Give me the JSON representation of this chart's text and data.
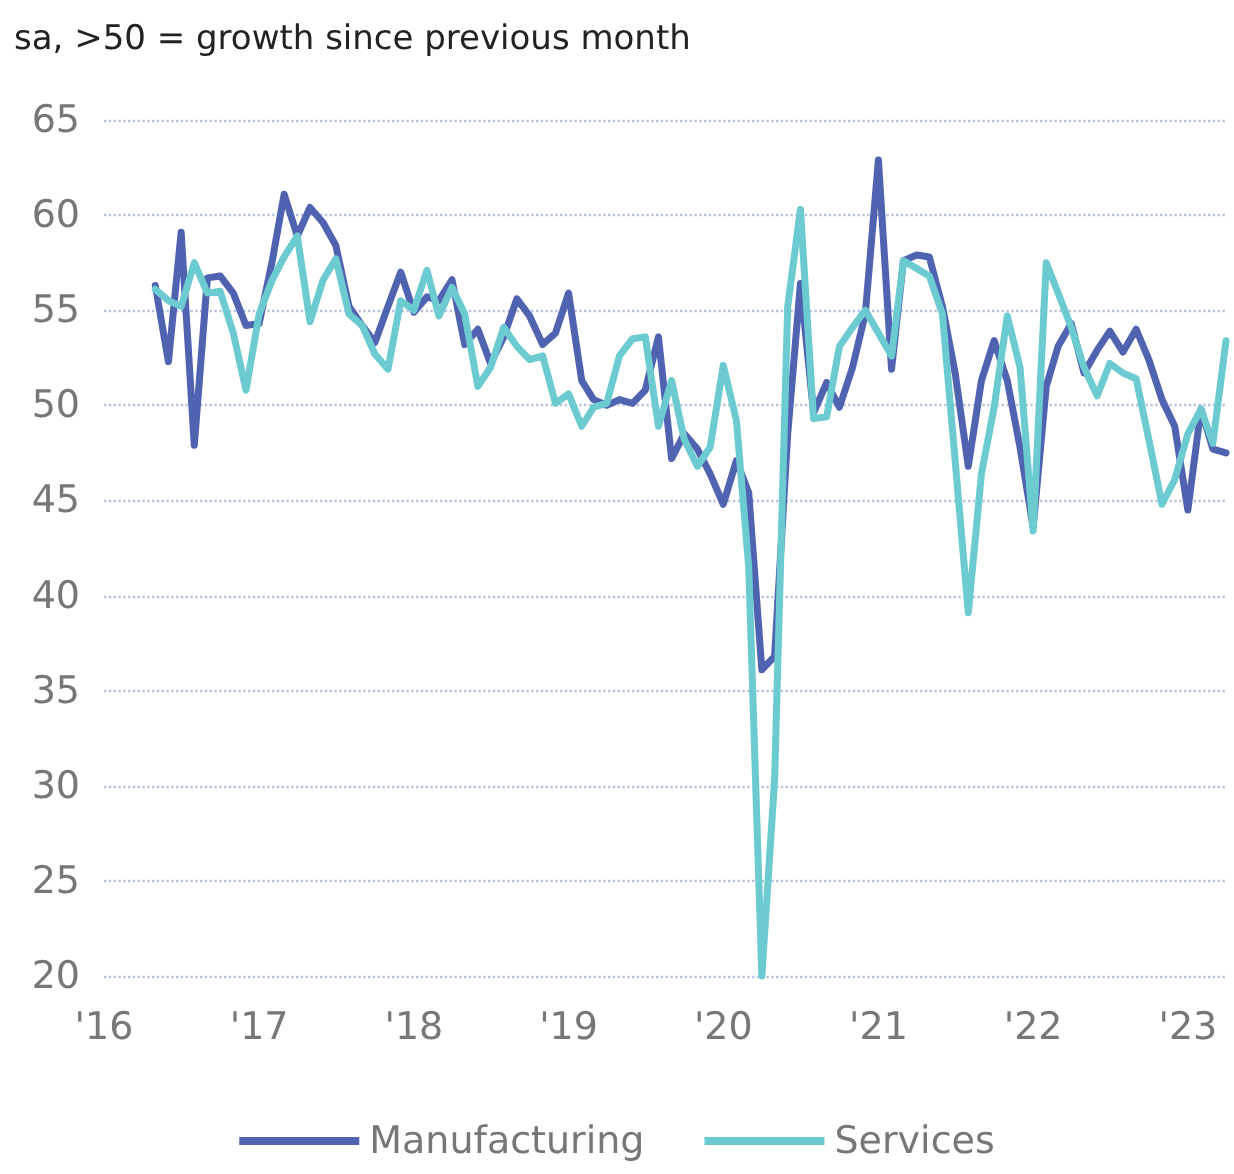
{
  "chart_data": {
    "type": "line",
    "subtitle": "sa, >50 = growth since previous month",
    "x": [
      "2016-05",
      "2016-06",
      "2016-07",
      "2016-08",
      "2016-09",
      "2016-10",
      "2016-11",
      "2016-12",
      "2017-01",
      "2017-02",
      "2017-03",
      "2017-04",
      "2017-05",
      "2017-06",
      "2017-07",
      "2017-08",
      "2017-09",
      "2017-10",
      "2017-11",
      "2017-12",
      "2018-01",
      "2018-02",
      "2018-03",
      "2018-04",
      "2018-05",
      "2018-06",
      "2018-07",
      "2018-08",
      "2018-09",
      "2018-10",
      "2018-11",
      "2018-12",
      "2019-01",
      "2019-02",
      "2019-03",
      "2019-04",
      "2019-05",
      "2019-06",
      "2019-07",
      "2019-08",
      "2019-09",
      "2019-10",
      "2019-11",
      "2019-12",
      "2020-01",
      "2020-02",
      "2020-03",
      "2020-04",
      "2020-05",
      "2020-06",
      "2020-07",
      "2020-08",
      "2020-09",
      "2020-10",
      "2020-11",
      "2020-12",
      "2021-01",
      "2021-02",
      "2021-03",
      "2021-04",
      "2021-05",
      "2021-06",
      "2021-07",
      "2021-08",
      "2021-09",
      "2021-10",
      "2021-11",
      "2021-12",
      "2022-01",
      "2022-02",
      "2022-03",
      "2022-04",
      "2022-05",
      "2022-06",
      "2022-07",
      "2022-08",
      "2022-09",
      "2022-10",
      "2022-11",
      "2022-12",
      "2023-01",
      "2023-02",
      "2023-03",
      "2023-04"
    ],
    "series": [
      {
        "name": "Manufacturing",
        "color": "#4f63b0",
        "values": [
          56.3,
          52.3,
          59.1,
          47.9,
          56.7,
          56.8,
          55.9,
          54.2,
          54.3,
          57.6,
          61.1,
          58.9,
          60.4,
          59.6,
          58.4,
          55.2,
          54.2,
          53.3,
          55.2,
          57.0,
          54.9,
          55.7,
          55.5,
          56.6,
          53.2,
          54.0,
          52.2,
          53.6,
          55.6,
          54.7,
          53.2,
          53.8,
          55.9,
          51.3,
          50.3,
          50.0,
          50.3,
          50.1,
          50.8,
          53.6,
          47.2,
          48.5,
          47.7,
          46.4,
          44.8,
          47.1,
          45.4,
          36.1,
          36.8,
          48.5,
          56.4,
          49.6,
          51.2,
          49.9,
          52.0,
          54.8,
          62.9,
          51.9,
          57.6,
          57.9,
          57.8,
          55.2,
          51.7,
          46.8,
          51.3,
          53.4,
          51.3,
          47.8,
          43.6,
          51.0,
          53.1,
          54.3,
          51.7,
          52.9,
          53.9,
          52.8,
          54.0,
          52.4,
          50.3,
          48.9,
          44.5,
          49.8,
          47.7,
          47.5
        ]
      },
      {
        "name": "Services",
        "color": "#6ccbd0",
        "values": [
          56.1,
          55.5,
          55.2,
          57.5,
          55.9,
          56.0,
          53.8,
          50.8,
          54.8,
          56.6,
          57.8,
          58.9,
          54.4,
          56.6,
          57.7,
          54.8,
          54.2,
          52.7,
          51.9,
          55.5,
          55.0,
          57.1,
          54.7,
          56.2,
          54.8,
          51.0,
          52.0,
          54.1,
          53.1,
          52.4,
          52.6,
          50.1,
          50.6,
          48.9,
          49.9,
          50.1,
          52.6,
          53.5,
          53.6,
          48.9,
          51.3,
          48.2,
          46.8,
          47.8,
          52.1,
          49.2,
          41.5,
          20,
          30.3,
          55.2,
          60.3,
          49.3,
          49.4,
          53.1,
          54.1,
          55.0,
          53.8,
          52.6,
          57.6,
          57.2,
          56.8,
          54.8,
          47.1,
          39.1,
          46.4,
          49.9,
          54.7,
          52.0,
          43.4,
          57.5,
          55.9,
          54.1,
          52.0,
          50.5,
          52.2,
          51.7,
          51.4,
          48.2,
          44.8,
          46.1,
          48.5,
          49.8,
          48.0,
          53.4
        ]
      }
    ],
    "xlim": [
      "2016-01",
      "2023-04"
    ],
    "xticks": [
      {
        "value": "2016-01",
        "label": "'16"
      },
      {
        "value": "2017-01",
        "label": "'17"
      },
      {
        "value": "2018-01",
        "label": "'18"
      },
      {
        "value": "2019-01",
        "label": "'19"
      },
      {
        "value": "2020-01",
        "label": "'20"
      },
      {
        "value": "2021-01",
        "label": "'21"
      },
      {
        "value": "2022-01",
        "label": "'22"
      },
      {
        "value": "2023-01",
        "label": "'23"
      }
    ],
    "ylim": [
      20,
      65
    ],
    "yticks": [
      20,
      25,
      30,
      35,
      40,
      45,
      50,
      55,
      60,
      65
    ],
    "grid": "y",
    "legend": "bottom",
    "marker": "none",
    "line_style": "solid"
  }
}
